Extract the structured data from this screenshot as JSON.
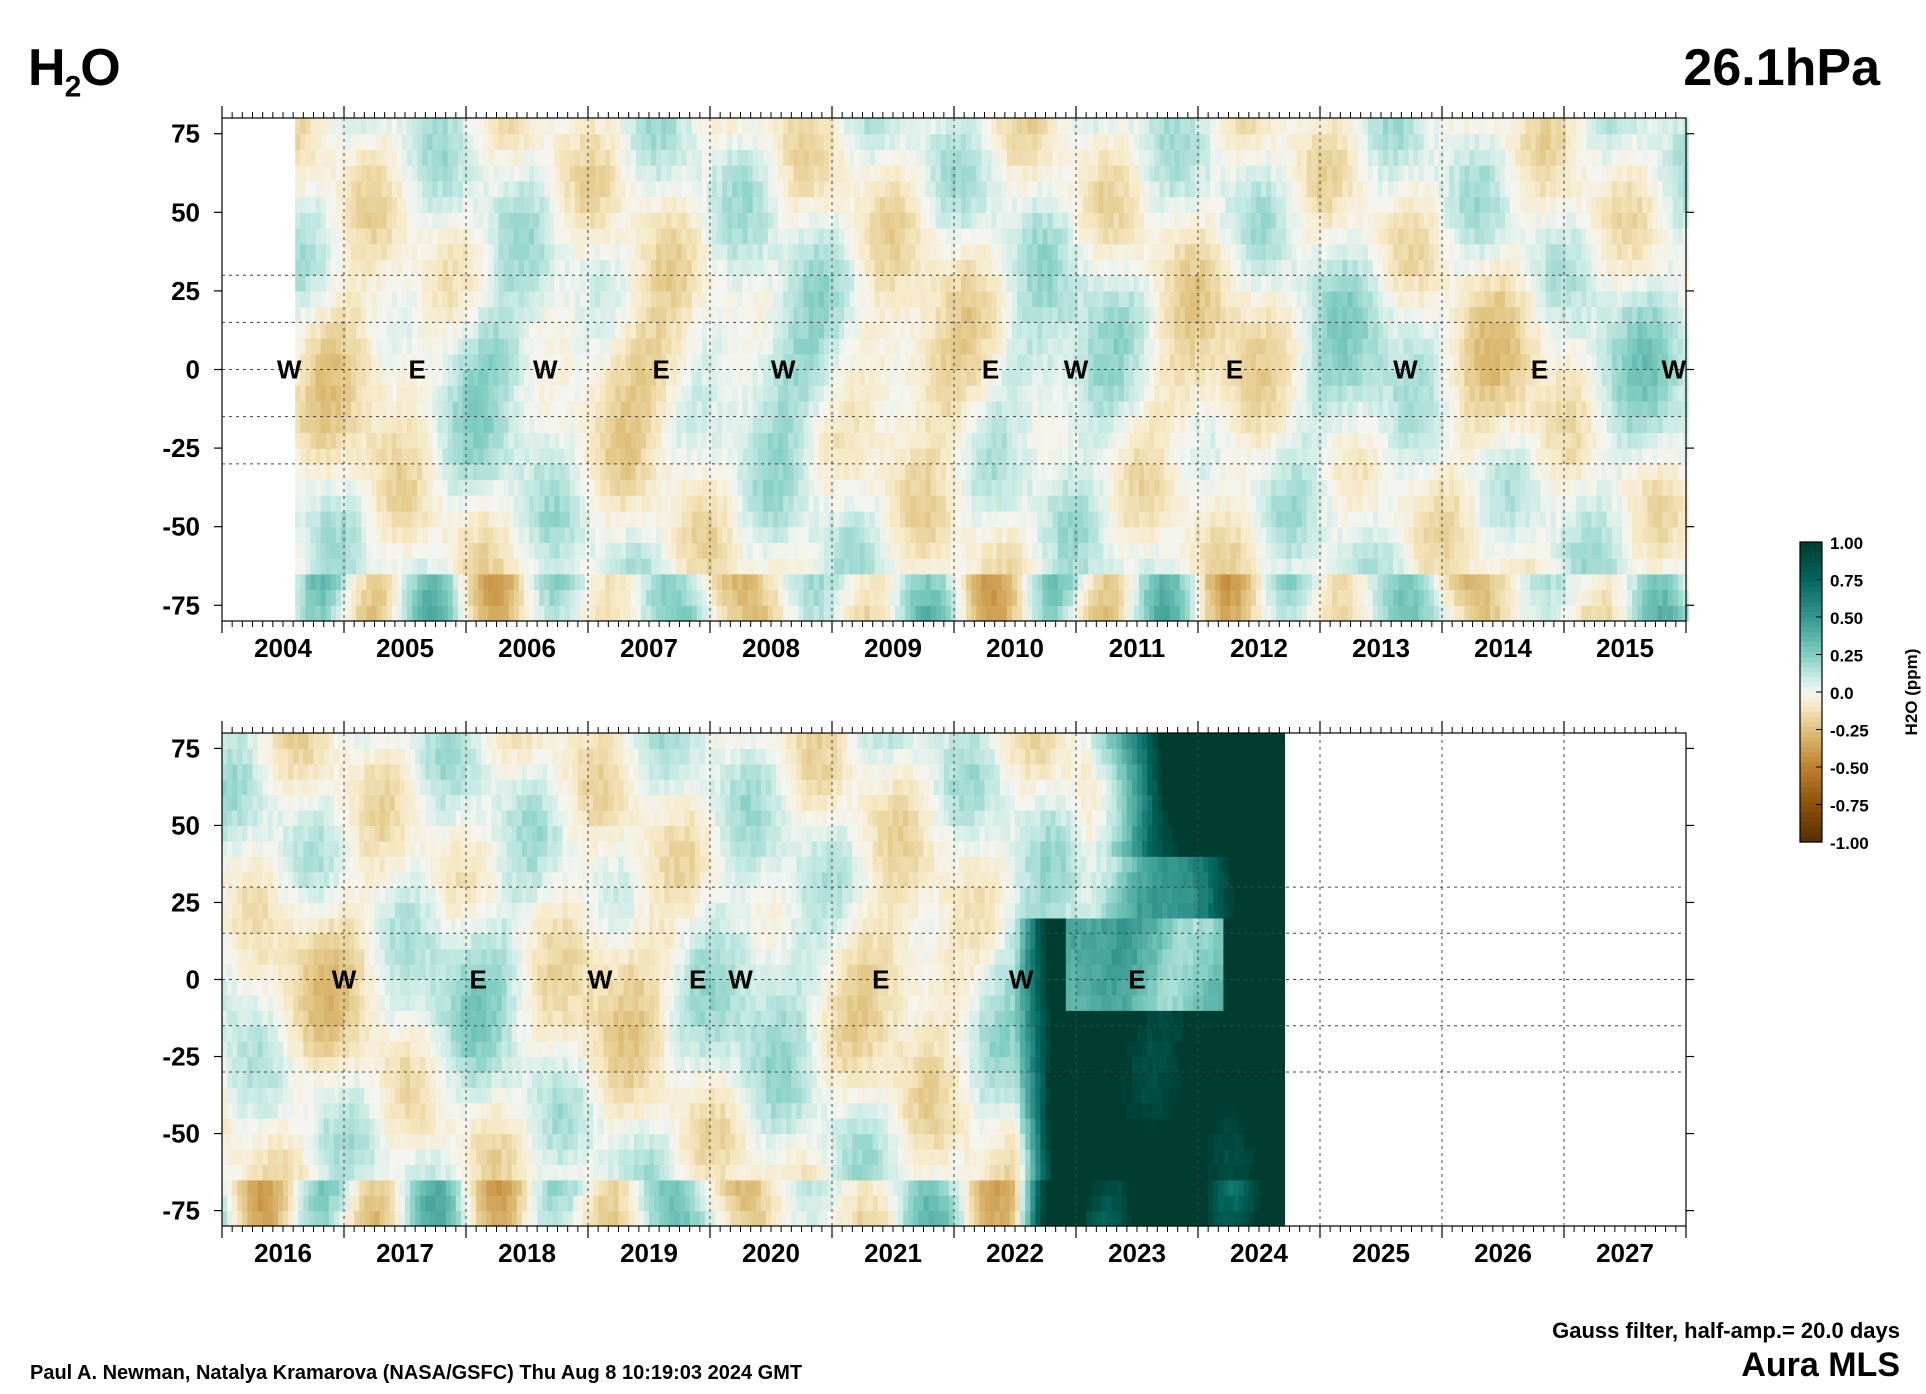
{
  "header": {
    "variable": "H",
    "variable_sub": "2",
    "variable_tail": "O",
    "level": "26.1hPa"
  },
  "footer": {
    "authors": "Paul A. Newman, Natalya Kramarova (NASA/GSFC) Thu Aug  8 10:19:03 2024 GMT",
    "filter": "Gauss filter, half-amp.= 20.0 days",
    "instrument": "Aura MLS"
  },
  "colors": {
    "wet_dark": "#01665e",
    "wet_mid": "#5ab4ac",
    "wet_light": "#c7eae5",
    "neutral": "#f5f5f0",
    "dry_light": "#f6e8c3",
    "dry_mid": "#d8b365",
    "dry_dark": "#8c510a"
  },
  "chart_data": [
    {
      "type": "heatmap",
      "panel": "top",
      "x_ticks": [
        "2004",
        "2005",
        "2006",
        "2007",
        "2008",
        "2009",
        "2010",
        "2011",
        "2012",
        "2013",
        "2014",
        "2015"
      ],
      "xlim": [
        2003.5,
        2015.5
      ],
      "ylim": [
        -80,
        80
      ],
      "y_ticks": [
        75,
        50,
        25,
        0,
        -25,
        -50,
        -75
      ],
      "grid_lat_dotted": [
        30,
        15,
        -15,
        -30
      ],
      "data_start": 2004.1,
      "data_end": 2015.5,
      "qbo_labels": [
        {
          "x": 2004.05,
          "label": "W"
        },
        {
          "x": 2005.1,
          "label": "E"
        },
        {
          "x": 2006.15,
          "label": "W"
        },
        {
          "x": 2007.1,
          "label": "E"
        },
        {
          "x": 2008.1,
          "label": "W"
        },
        {
          "x": 2009.8,
          "label": "E"
        },
        {
          "x": 2010.5,
          "label": "W"
        },
        {
          "x": 2011.8,
          "label": "E"
        },
        {
          "x": 2013.2,
          "label": "W"
        },
        {
          "x": 2014.3,
          "label": "E"
        },
        {
          "x": 2015.4,
          "label": "W"
        }
      ]
    },
    {
      "type": "heatmap",
      "panel": "bottom",
      "x_ticks": [
        "2016",
        "2017",
        "2018",
        "2019",
        "2020",
        "2021",
        "2022",
        "2023",
        "2024",
        "2025",
        "2026",
        "2027"
      ],
      "xlim": [
        2015.5,
        2027.5
      ],
      "ylim": [
        -80,
        80
      ],
      "y_ticks": [
        75,
        50,
        25,
        0,
        -25,
        -50,
        -75
      ],
      "grid_lat_dotted": [
        30,
        15,
        -15,
        -30
      ],
      "data_start": 2015.5,
      "data_end": 2024.2,
      "qbo_labels": [
        {
          "x": 2016.5,
          "label": "W"
        },
        {
          "x": 2017.6,
          "label": "E"
        },
        {
          "x": 2018.6,
          "label": "W"
        },
        {
          "x": 2019.4,
          "label": "E"
        },
        {
          "x": 2019.75,
          "label": "W"
        },
        {
          "x": 2020.9,
          "label": "E"
        },
        {
          "x": 2022.05,
          "label": "W"
        },
        {
          "x": 2023.0,
          "label": "E"
        }
      ]
    }
  ],
  "colorbar": {
    "label": "H2O (ppm)",
    "ticks": [
      "1.00",
      "0.75",
      "0.50",
      "0.25",
      "0.0",
      "-0.25",
      "-0.50",
      "-0.75",
      "-1.00"
    ],
    "range": [
      -1.0,
      1.0
    ]
  }
}
